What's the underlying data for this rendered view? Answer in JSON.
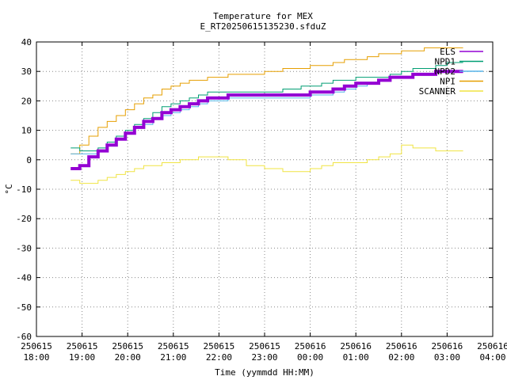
{
  "chart_data": {
    "type": "line",
    "title": "Temperature for MEX",
    "subtitle": "E_RT20250615135230.sfduZ",
    "xlabel": "Time (yymmdd HH:MM)",
    "ylabel": "°C",
    "ylim": [
      -60,
      40
    ],
    "yticks": [
      -60,
      -50,
      -40,
      -30,
      -20,
      -10,
      0,
      10,
      20,
      30,
      40
    ],
    "xlim": [
      18.0,
      28.0
    ],
    "xticks": [
      {
        "hours": 18,
        "date": "250615",
        "time": "18:00"
      },
      {
        "hours": 19,
        "date": "250615",
        "time": "19:00"
      },
      {
        "hours": 20,
        "date": "250615",
        "time": "20:00"
      },
      {
        "hours": 21,
        "date": "250615",
        "time": "21:00"
      },
      {
        "hours": 22,
        "date": "250615",
        "time": "22:00"
      },
      {
        "hours": 23,
        "date": "250615",
        "time": "23:00"
      },
      {
        "hours": 24,
        "date": "250616",
        "time": "00:00"
      },
      {
        "hours": 25,
        "date": "250616",
        "time": "01:00"
      },
      {
        "hours": 26,
        "date": "250616",
        "time": "02:00"
      },
      {
        "hours": 27,
        "date": "250616",
        "time": "03:00"
      },
      {
        "hours": 28,
        "date": "250616",
        "time": "04:00"
      }
    ],
    "grid": true,
    "legend_position": "top-right",
    "series": [
      {
        "name": "ELS",
        "color": "#9400d3",
        "width": 4,
        "points": [
          [
            18.75,
            -3
          ],
          [
            18.95,
            -2
          ],
          [
            19.15,
            1
          ],
          [
            19.35,
            3
          ],
          [
            19.55,
            5
          ],
          [
            19.75,
            7
          ],
          [
            19.95,
            9
          ],
          [
            20.15,
            11
          ],
          [
            20.35,
            13
          ],
          [
            20.55,
            14
          ],
          [
            20.75,
            16
          ],
          [
            20.95,
            17
          ],
          [
            21.15,
            18
          ],
          [
            21.35,
            19
          ],
          [
            21.55,
            20
          ],
          [
            21.75,
            21
          ],
          [
            21.95,
            21
          ],
          [
            22.2,
            22
          ],
          [
            22.6,
            22
          ],
          [
            23.0,
            22
          ],
          [
            23.4,
            22
          ],
          [
            23.8,
            22
          ],
          [
            24.0,
            23
          ],
          [
            24.25,
            23
          ],
          [
            24.5,
            24
          ],
          [
            24.75,
            25
          ],
          [
            25.0,
            26
          ],
          [
            25.25,
            26
          ],
          [
            25.5,
            27
          ],
          [
            25.75,
            28
          ],
          [
            26.0,
            28
          ],
          [
            26.25,
            29
          ],
          [
            26.5,
            29
          ],
          [
            26.75,
            30
          ],
          [
            27.0,
            30
          ],
          [
            27.2,
            30
          ],
          [
            27.35,
            30
          ]
        ]
      },
      {
        "name": "NPD1",
        "color": "#009e73",
        "width": 1,
        "points": [
          [
            18.75,
            4
          ],
          [
            18.95,
            3
          ],
          [
            19.15,
            3
          ],
          [
            19.35,
            4
          ],
          [
            19.55,
            6
          ],
          [
            19.75,
            8
          ],
          [
            19.95,
            10
          ],
          [
            20.15,
            12
          ],
          [
            20.35,
            14
          ],
          [
            20.55,
            16
          ],
          [
            20.75,
            18
          ],
          [
            20.95,
            19
          ],
          [
            21.15,
            20
          ],
          [
            21.35,
            21
          ],
          [
            21.55,
            22
          ],
          [
            21.75,
            23
          ],
          [
            21.95,
            23
          ],
          [
            22.2,
            23
          ],
          [
            22.6,
            23
          ],
          [
            23.0,
            23
          ],
          [
            23.4,
            24
          ],
          [
            23.8,
            25
          ],
          [
            24.0,
            25
          ],
          [
            24.25,
            26
          ],
          [
            24.5,
            27
          ],
          [
            24.75,
            27
          ],
          [
            25.0,
            28
          ],
          [
            25.25,
            28
          ],
          [
            25.5,
            28
          ],
          [
            25.75,
            29
          ],
          [
            26.0,
            30
          ],
          [
            26.25,
            31
          ],
          [
            26.5,
            31
          ],
          [
            26.75,
            32
          ],
          [
            27.0,
            33
          ],
          [
            27.2,
            33
          ],
          [
            27.35,
            33
          ]
        ]
      },
      {
        "name": "NPD2",
        "color": "#56b4e9",
        "width": 1,
        "points": [
          [
            18.75,
            2
          ],
          [
            18.95,
            2
          ],
          [
            19.15,
            2
          ],
          [
            19.35,
            3
          ],
          [
            19.55,
            5
          ],
          [
            19.75,
            7
          ],
          [
            19.95,
            9
          ],
          [
            20.15,
            11
          ],
          [
            20.35,
            12
          ],
          [
            20.55,
            14
          ],
          [
            20.75,
            15
          ],
          [
            20.95,
            16
          ],
          [
            21.15,
            17
          ],
          [
            21.35,
            18
          ],
          [
            21.55,
            19
          ],
          [
            21.75,
            20
          ],
          [
            21.95,
            20
          ],
          [
            22.2,
            21
          ],
          [
            22.6,
            21
          ],
          [
            23.0,
            21
          ],
          [
            23.4,
            21
          ],
          [
            23.8,
            21
          ],
          [
            24.0,
            22
          ],
          [
            24.25,
            22
          ],
          [
            24.5,
            23
          ],
          [
            24.75,
            24
          ],
          [
            25.0,
            25
          ],
          [
            25.25,
            26
          ],
          [
            25.5,
            27
          ],
          [
            25.75,
            28
          ],
          [
            26.0,
            28
          ],
          [
            26.25,
            29
          ],
          [
            26.5,
            29
          ],
          [
            26.75,
            30
          ],
          [
            27.0,
            30
          ],
          [
            27.2,
            30
          ],
          [
            27.35,
            30
          ]
        ]
      },
      {
        "name": "NPI",
        "color": "#e69f00",
        "width": 1,
        "points": [
          [
            18.75,
            2
          ],
          [
            18.95,
            5
          ],
          [
            19.15,
            8
          ],
          [
            19.35,
            11
          ],
          [
            19.55,
            13
          ],
          [
            19.75,
            15
          ],
          [
            19.95,
            17
          ],
          [
            20.15,
            19
          ],
          [
            20.35,
            21
          ],
          [
            20.55,
            22
          ],
          [
            20.75,
            24
          ],
          [
            20.95,
            25
          ],
          [
            21.15,
            26
          ],
          [
            21.35,
            27
          ],
          [
            21.55,
            27
          ],
          [
            21.75,
            28
          ],
          [
            21.95,
            28
          ],
          [
            22.2,
            29
          ],
          [
            22.6,
            29
          ],
          [
            23.0,
            30
          ],
          [
            23.4,
            31
          ],
          [
            23.8,
            31
          ],
          [
            24.0,
            32
          ],
          [
            24.25,
            32
          ],
          [
            24.5,
            33
          ],
          [
            24.75,
            34
          ],
          [
            25.0,
            34
          ],
          [
            25.25,
            35
          ],
          [
            25.5,
            36
          ],
          [
            25.75,
            36
          ],
          [
            26.0,
            37
          ],
          [
            26.25,
            37
          ],
          [
            26.5,
            38
          ],
          [
            26.75,
            38
          ],
          [
            27.0,
            38
          ],
          [
            27.2,
            38
          ],
          [
            27.35,
            38
          ]
        ]
      },
      {
        "name": "SCANNER",
        "color": "#f0e442",
        "width": 1,
        "points": [
          [
            18.75,
            -7
          ],
          [
            18.95,
            -8
          ],
          [
            19.15,
            -8
          ],
          [
            19.35,
            -7
          ],
          [
            19.55,
            -6
          ],
          [
            19.75,
            -5
          ],
          [
            19.95,
            -4
          ],
          [
            20.15,
            -3
          ],
          [
            20.35,
            -2
          ],
          [
            20.55,
            -2
          ],
          [
            20.75,
            -1
          ],
          [
            20.95,
            -1
          ],
          [
            21.15,
            0
          ],
          [
            21.35,
            0
          ],
          [
            21.55,
            1
          ],
          [
            21.75,
            1
          ],
          [
            21.95,
            1
          ],
          [
            22.2,
            0
          ],
          [
            22.6,
            -2
          ],
          [
            23.0,
            -3
          ],
          [
            23.4,
            -4
          ],
          [
            23.8,
            -4
          ],
          [
            24.0,
            -3
          ],
          [
            24.25,
            -2
          ],
          [
            24.5,
            -1
          ],
          [
            24.75,
            -1
          ],
          [
            25.0,
            -1
          ],
          [
            25.25,
            0
          ],
          [
            25.5,
            1
          ],
          [
            25.75,
            2
          ],
          [
            26.0,
            5
          ],
          [
            26.25,
            4
          ],
          [
            26.5,
            4
          ],
          [
            26.75,
            3
          ],
          [
            27.0,
            3
          ],
          [
            27.2,
            3
          ],
          [
            27.35,
            3
          ]
        ]
      }
    ]
  }
}
